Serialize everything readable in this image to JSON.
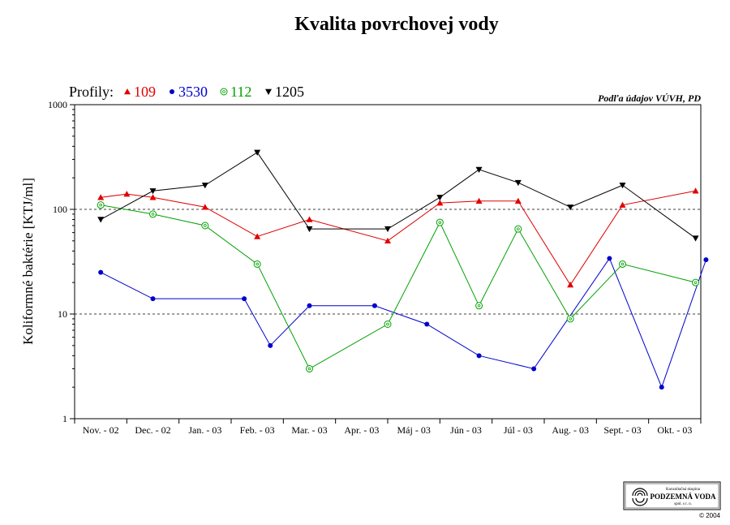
{
  "chart_data": {
    "type": "line",
    "title": "Kvalita povrchovej vody",
    "ylabel": "Koliformné baktérie [KTJ/ml]",
    "yscale": "log",
    "ylim": [
      1,
      1000
    ],
    "yticks": [
      "1",
      "10",
      "100",
      "1000"
    ],
    "gridlines": [
      10,
      100
    ],
    "categories": [
      "Nov. - 02",
      "Dec. - 02",
      "Jan. - 03",
      "Feb. - 03",
      "Mar. - 03",
      "Apr. - 03",
      "Máj - 03",
      "Jún - 03",
      "Júl - 03",
      "Aug. - 03",
      "Sept. - 03",
      "Okt. - 03"
    ],
    "legend_title": "Profily:",
    "legend_position": "top-left",
    "source": "Podľa údajov VÚVH, PD",
    "series": [
      {
        "name": "109",
        "color": "#e00000",
        "marker": "triangle-up",
        "points": [
          [
            0.0,
            130
          ],
          [
            0.5,
            140
          ],
          [
            1.0,
            130
          ],
          [
            2.0,
            105
          ],
          [
            3.0,
            55
          ],
          [
            4.0,
            80
          ],
          [
            5.5,
            50
          ],
          [
            6.5,
            115
          ],
          [
            7.25,
            120
          ],
          [
            8.0,
            120
          ],
          [
            9.0,
            19
          ],
          [
            10.0,
            110
          ],
          [
            11.4,
            150
          ]
        ]
      },
      {
        "name": "3530",
        "color": "#0000cc",
        "marker": "filled-circle",
        "points": [
          [
            0.0,
            25
          ],
          [
            1.0,
            14
          ],
          [
            2.75,
            14
          ],
          [
            3.25,
            5
          ],
          [
            4.0,
            12
          ],
          [
            5.25,
            12
          ],
          [
            6.25,
            8
          ],
          [
            7.25,
            4
          ],
          [
            8.3,
            3
          ],
          [
            9.75,
            34
          ],
          [
            10.75,
            2
          ],
          [
            11.6,
            33
          ]
        ]
      },
      {
        "name": "112",
        "color": "#00a000",
        "marker": "open-circle",
        "points": [
          [
            0.0,
            110
          ],
          [
            1.0,
            90
          ],
          [
            2.0,
            70
          ],
          [
            3.0,
            30
          ],
          [
            4.0,
            3
          ],
          [
            5.5,
            8
          ],
          [
            6.5,
            75
          ],
          [
            7.25,
            12
          ],
          [
            8.0,
            65
          ],
          [
            9.0,
            9
          ],
          [
            10.0,
            30
          ],
          [
            11.4,
            20
          ]
        ]
      },
      {
        "name": "1205",
        "color": "#000000",
        "marker": "triangle-down",
        "points": [
          [
            0.0,
            80
          ],
          [
            1.0,
            150
          ],
          [
            2.0,
            170
          ],
          [
            3.0,
            350
          ],
          [
            4.0,
            65
          ],
          [
            5.5,
            65
          ],
          [
            6.5,
            130
          ],
          [
            7.25,
            240
          ],
          [
            8.0,
            180
          ],
          [
            9.0,
            105
          ],
          [
            10.0,
            170
          ],
          [
            11.4,
            53
          ]
        ]
      }
    ]
  },
  "logo": {
    "line1": "Konzultačná skupina",
    "line2": "PODZEMNÁ VODA",
    "line3": "spol. s r. o.",
    "copyright": "© 2004"
  }
}
